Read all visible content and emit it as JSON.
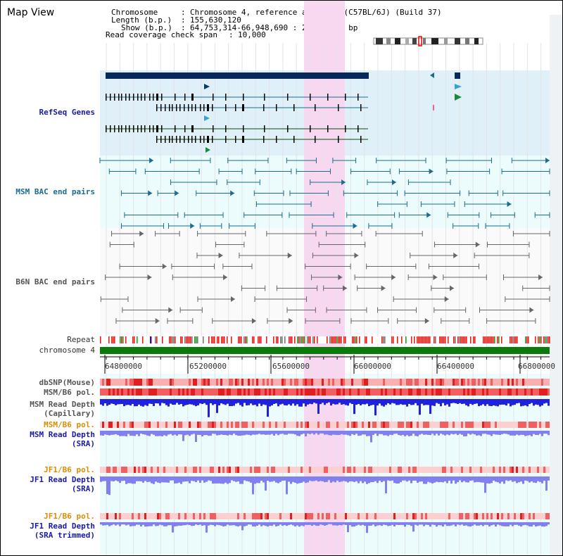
{
  "view_title": "Map View",
  "header": {
    "chromosome_key": "Chromosome",
    "chromosome_value": "Chromosome 4, reference assembly (C57BL/6J) (Build 37)",
    "length_key": "Length (b.p.)",
    "length_value": "155,630,120",
    "show_key": "Show (b.p.)",
    "show_value": "64,753,314-66,948,690 : 2,195,377 bp",
    "coverage_key": "Read coverage check span",
    "coverage_value": "10,000"
  },
  "tracks": {
    "refseq": "RefSeq Genes",
    "msm_bac": "MSM BAC end pairs",
    "b6n_bac": "B6N BAC end pairs",
    "repeat": "Repeat",
    "chromosome": "chromosome 4",
    "dbsnp": "dbSNP(Mouse)",
    "msm_b6_pol_1": "MSM/B6 pol.",
    "msm_depth_cap_1": "MSM Read Depth",
    "msm_depth_cap_2": "(Capillary)",
    "msm_b6_pol_2": "MSM/B6 pol.",
    "msm_depth_sra_1": "MSM Read Depth",
    "msm_depth_sra_2": "(SRA)",
    "jf1_pol_1": "JF1/B6 pol.",
    "jf1_depth_sra_1": "JF1 Read Depth",
    "jf1_depth_sra_2": "(SRA)",
    "jf1_pol_2": "JF1/B6 pol.",
    "jf1_depth_trim_1": "JF1 Read Depth",
    "jf1_depth_trim_2": "(SRA trimmed)"
  },
  "axis": {
    "ticks": [
      "64800000",
      "65200000",
      "65600000",
      "66000000",
      "66400000",
      "66800000"
    ]
  },
  "colors": {
    "refseq_bg": "#dff0f8",
    "bac_bg": "#ecfcfc",
    "highlight": "#f8d8f0",
    "gene_main": "#06285a",
    "chromosome": "#0a7a0a",
    "depth_cap": "#2020dd",
    "depth_sra": "#8080ee"
  }
}
